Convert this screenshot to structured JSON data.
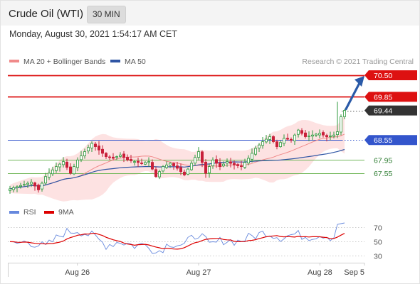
{
  "header": {
    "instrument": "Crude Oil (WTI)",
    "timeframe": "30 MIN",
    "datetime": "Monday, August 30, 2021 1:54:17 AM CET"
  },
  "legend": {
    "main": [
      {
        "label": "MA 20 + Bollinger Bands",
        "color": "#f08a8a"
      },
      {
        "label": "MA 50",
        "color": "#2f55a4"
      }
    ],
    "rsi": [
      {
        "label": "RSI",
        "color": "#6688dd"
      },
      {
        "label": "9MA",
        "color": "#dd0000"
      }
    ]
  },
  "copyright": "Research © 2021 Trading Central",
  "colors": {
    "resistance": "#dd1111",
    "pivot": "#3355cc",
    "support": "#72b85a",
    "last_price": "#333333",
    "up_candle": "#2e9a3e",
    "down_candle": "#c8203a",
    "bollinger_fill": "#fde2e2",
    "arrow": "#2a5aa8"
  },
  "chart_data": {
    "type": "candlestick",
    "price_range": [
      66.7,
      71.2
    ],
    "levels": [
      {
        "value": 70.5,
        "label": "70.50",
        "kind": "resistance"
      },
      {
        "value": 69.85,
        "label": "69.85",
        "kind": "resistance"
      },
      {
        "value": 69.44,
        "label": "69.44",
        "kind": "last"
      },
      {
        "value": 68.55,
        "label": "68.55",
        "kind": "pivot"
      },
      {
        "value": 67.95,
        "label": "67.95",
        "kind": "support"
      },
      {
        "value": 67.55,
        "label": "67.55",
        "kind": "support"
      }
    ],
    "x_labels": [
      "Aug 26",
      "Aug 27",
      "Aug 28",
      "Sep 5"
    ],
    "x_label_positions": [
      19.5,
      53.5,
      87.5,
      100
    ],
    "bar_count": 95,
    "close_anchors": [
      [
        0,
        67.08
      ],
      [
        3,
        67.18
      ],
      [
        6,
        67.28
      ],
      [
        8,
        67.05
      ],
      [
        10,
        67.45
      ],
      [
        13,
        67.75
      ],
      [
        15,
        67.9
      ],
      [
        17,
        67.55
      ],
      [
        19,
        67.95
      ],
      [
        21,
        68.2
      ],
      [
        23,
        68.45
      ],
      [
        25,
        68.25
      ],
      [
        27,
        68.05
      ],
      [
        29,
        68.0
      ],
      [
        31,
        68.1
      ],
      [
        33,
        67.95
      ],
      [
        35,
        67.9
      ],
      [
        37,
        67.85
      ],
      [
        39,
        67.9
      ],
      [
        41,
        67.45
      ],
      [
        43,
        67.75
      ],
      [
        45,
        67.85
      ],
      [
        47,
        67.7
      ],
      [
        49,
        67.5
      ],
      [
        51,
        67.85
      ],
      [
        53,
        68.2
      ],
      [
        55,
        67.55
      ],
      [
        57,
        67.95
      ],
      [
        59,
        67.75
      ],
      [
        61,
        67.9
      ],
      [
        63,
        67.8
      ],
      [
        65,
        67.75
      ],
      [
        67,
        68.0
      ],
      [
        69,
        68.3
      ],
      [
        71,
        68.5
      ],
      [
        73,
        68.65
      ],
      [
        75,
        68.35
      ],
      [
        77,
        68.6
      ],
      [
        79,
        68.55
      ],
      [
        81,
        68.85
      ],
      [
        83,
        68.65
      ],
      [
        85,
        68.7
      ],
      [
        87,
        68.75
      ],
      [
        89,
        68.65
      ],
      [
        91,
        68.7
      ],
      [
        92,
        68.8
      ],
      [
        93,
        69.25
      ],
      [
        94,
        69.44
      ]
    ],
    "forecast_target": 70.5,
    "rsi": {
      "ylim": [
        20,
        80
      ],
      "ticks": [
        70,
        50,
        30
      ],
      "anchors": [
        [
          0,
          45
        ],
        [
          5,
          50
        ],
        [
          10,
          42
        ],
        [
          15,
          62
        ],
        [
          19,
          66
        ],
        [
          23,
          58
        ],
        [
          27,
          45
        ],
        [
          31,
          50
        ],
        [
          35,
          44
        ],
        [
          39,
          46
        ],
        [
          41,
          34
        ],
        [
          45,
          48
        ],
        [
          49,
          45
        ],
        [
          53,
          62
        ],
        [
          56,
          44
        ],
        [
          60,
          52
        ],
        [
          64,
          50
        ],
        [
          68,
          57
        ],
        [
          72,
          63
        ],
        [
          76,
          56
        ],
        [
          80,
          60
        ],
        [
          84,
          57
        ],
        [
          88,
          60
        ],
        [
          91,
          55
        ],
        [
          92,
          74
        ],
        [
          94,
          76
        ]
      ]
    }
  }
}
